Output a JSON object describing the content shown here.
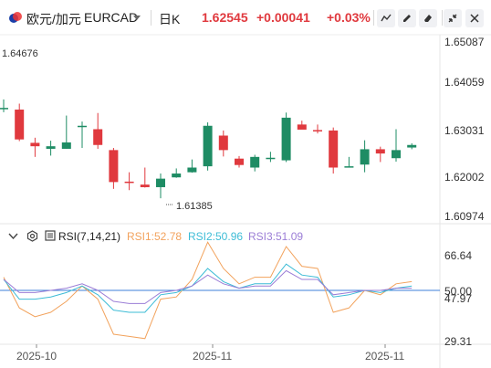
{
  "header": {
    "pair_cn": "欧元/加元",
    "pair_code": "EURCAD",
    "interval": "日K",
    "price": "1.62545",
    "change": "+0.00041",
    "change_pct": "+0.03%"
  },
  "toolbar": {
    "icons": [
      "line-chart-icon",
      "draw-pencil-icon",
      "eraser-icon",
      "collapse-icon",
      "close-icon"
    ]
  },
  "price_axis": [
    "1.65087",
    "1.64059",
    "1.63031",
    "1.62002",
    "1.60974"
  ],
  "annotations": {
    "high": "1.64676",
    "low": "1.61385"
  },
  "indicator": {
    "name": "RSI(7,14,21)",
    "rsi1": "RSI1:52.78",
    "rsi2": "RSI2:50.96",
    "rsi3": "RSI3:51.09"
  },
  "rsi_axis": [
    "66.64",
    "50.00",
    "47.97",
    "29.31"
  ],
  "x_axis": [
    "2025-10",
    "2025-11",
    "2025-11"
  ],
  "colors": {
    "up": "#1e8c64",
    "down": "#e0393e",
    "rsi1": "#f2a25c",
    "rsi2": "#3dbcd6",
    "rsi3": "#9b7dd6",
    "baseline": "#3d7fd8"
  },
  "chart_data": {
    "type": "candlestick",
    "candles": [
      {
        "o": 1.6352,
        "c": 1.6352,
        "h": 1.6372,
        "l": 1.6342
      },
      {
        "o": 1.6348,
        "c": 1.6278,
        "h": 1.6362,
        "l": 1.6274
      },
      {
        "o": 1.627,
        "c": 1.6262,
        "h": 1.6282,
        "l": 1.6237
      },
      {
        "o": 1.6256,
        "c": 1.6262,
        "h": 1.6275,
        "l": 1.624
      },
      {
        "o": 1.6256,
        "c": 1.6271,
        "h": 1.6334,
        "l": 1.6256
      },
      {
        "o": 1.631,
        "c": 1.631,
        "h": 1.632,
        "l": 1.6258
      },
      {
        "o": 1.6302,
        "c": 1.6265,
        "h": 1.634,
        "l": 1.6256
      },
      {
        "o": 1.6253,
        "c": 1.6178,
        "h": 1.6258,
        "l": 1.6162
      },
      {
        "o": 1.6179,
        "c": 1.6177,
        "h": 1.6201,
        "l": 1.6159
      },
      {
        "o": 1.6172,
        "c": 1.6166,
        "h": 1.6212,
        "l": 1.6165
      },
      {
        "o": 1.6166,
        "c": 1.6186,
        "h": 1.6198,
        "l": 1.614
      },
      {
        "o": 1.6189,
        "c": 1.6198,
        "h": 1.621,
        "l": 1.6188
      },
      {
        "o": 1.6201,
        "c": 1.6212,
        "h": 1.6231,
        "l": 1.62
      },
      {
        "o": 1.6215,
        "c": 1.631,
        "h": 1.6318,
        "l": 1.6205
      },
      {
        "o": 1.6287,
        "c": 1.6253,
        "h": 1.6299,
        "l": 1.6238
      },
      {
        "o": 1.6233,
        "c": 1.6218,
        "h": 1.6239,
        "l": 1.6212
      },
      {
        "o": 1.6212,
        "c": 1.6237,
        "h": 1.6242,
        "l": 1.6203
      },
      {
        "o": 1.6235,
        "c": 1.6235,
        "h": 1.6249,
        "l": 1.6225
      },
      {
        "o": 1.6229,
        "c": 1.6329,
        "h": 1.6341,
        "l": 1.6225
      },
      {
        "o": 1.6313,
        "c": 1.6301,
        "h": 1.6322,
        "l": 1.6302
      },
      {
        "o": 1.63,
        "c": 1.6298,
        "h": 1.6313,
        "l": 1.6292
      },
      {
        "o": 1.6299,
        "c": 1.6212,
        "h": 1.6306,
        "l": 1.6198
      },
      {
        "o": 1.6215,
        "c": 1.6215,
        "h": 1.6237,
        "l": 1.6212
      },
      {
        "o": 1.6219,
        "c": 1.6255,
        "h": 1.6276,
        "l": 1.6201
      },
      {
        "o": 1.6255,
        "c": 1.6245,
        "h": 1.6261,
        "l": 1.6225
      },
      {
        "o": 1.6234,
        "c": 1.6253,
        "h": 1.6302,
        "l": 1.6226
      },
      {
        "o": 1.6259,
        "c": 1.6265,
        "h": 1.6269,
        "l": 1.6255
      }
    ],
    "rsi": {
      "rsi1": [
        56,
        42,
        38,
        40,
        45,
        52,
        46,
        30,
        29,
        28,
        46,
        47,
        55,
        72,
        60,
        53,
        56,
        56,
        70,
        61,
        60,
        40,
        42,
        50,
        48,
        53,
        54
      ],
      "rsi2": [
        55,
        46,
        46,
        47,
        49,
        52,
        48,
        41,
        40,
        40,
        48,
        49,
        52,
        60,
        54,
        51,
        53,
        53,
        62,
        57,
        56,
        47,
        48,
        50,
        49,
        51,
        52
      ],
      "rsi3": [
        55,
        49,
        49,
        50,
        51,
        53,
        50,
        45,
        44,
        44,
        49,
        50,
        52,
        57,
        53,
        51,
        52,
        52,
        59,
        55,
        55,
        48,
        49,
        50,
        50,
        51,
        51
      ],
      "baseline": 50
    }
  }
}
